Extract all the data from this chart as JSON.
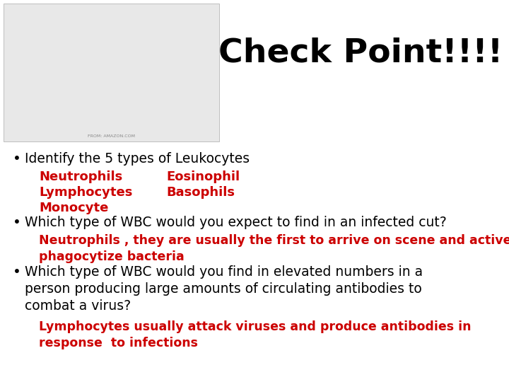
{
  "title": "Check Point!!!!",
  "title_fontsize": 34,
  "title_fontweight": "bold",
  "background_color": "#ffffff",
  "bullet_color": "#000000",
  "red_color": "#cc0000",
  "black_color": "#000000",
  "watermark": "FROM: AMAZON.COM",
  "content": [
    {
      "text": "Identify the 5 types of Leukocytes",
      "color": "#000000",
      "fontsize": 13.5,
      "fontweight": "normal",
      "indent": 0,
      "bullet": true
    },
    {
      "text": "Neutrophils",
      "text2": "Eosinophil",
      "color": "#cc0000",
      "fontsize": 13,
      "fontweight": "bold",
      "indent": 1,
      "bullet": false,
      "two_col": true
    },
    {
      "text": "Lymphocytes",
      "text2": "Basophils",
      "color": "#cc0000",
      "fontsize": 13,
      "fontweight": "bold",
      "indent": 1,
      "bullet": false,
      "two_col": true
    },
    {
      "text": "Monocyte",
      "color": "#cc0000",
      "fontsize": 13,
      "fontweight": "bold",
      "indent": 1,
      "bullet": false,
      "two_col": false
    },
    {
      "text": "Which type of WBC would you expect to find in an infected cut?",
      "color": "#000000",
      "fontsize": 13.5,
      "fontweight": "normal",
      "indent": 0,
      "bullet": true,
      "two_col": false
    },
    {
      "text": "Neutrophils , they are usually the first to arrive on scene and actively\nphagocytize bacteria",
      "color": "#cc0000",
      "fontsize": 12.5,
      "fontweight": "bold",
      "indent": 1,
      "bullet": false,
      "two_col": false
    },
    {
      "text": "Which type of WBC would you find in elevated numbers in a\nperson producing large amounts of circulating antibodies to\ncombat a virus?",
      "color": "#000000",
      "fontsize": 13.5,
      "fontweight": "normal",
      "indent": 0,
      "bullet": true,
      "two_col": false
    },
    {
      "text": "Lymphocytes usually attack viruses and produce antibodies in\nresponse  to infections",
      "color": "#cc0000",
      "fontsize": 12.5,
      "fontweight": "bold",
      "indent": 1,
      "bullet": false,
      "two_col": false
    }
  ]
}
